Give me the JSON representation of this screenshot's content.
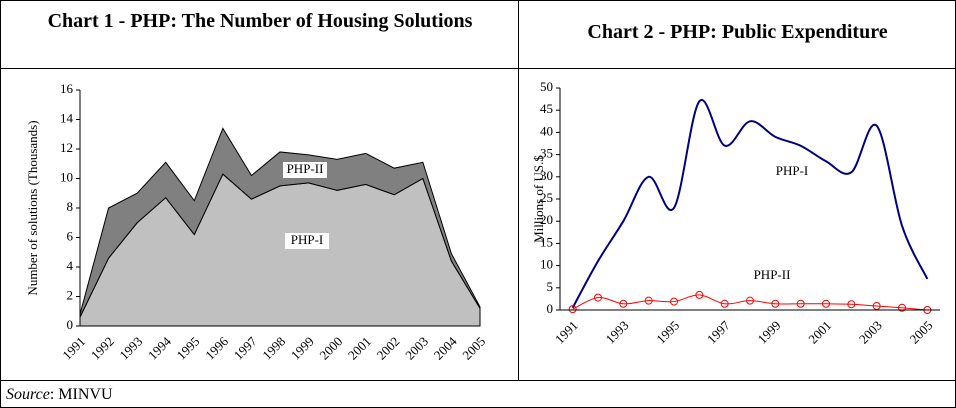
{
  "chart_data": [
    {
      "type": "stacked_area",
      "title": "Chart 1 - PHP: The Number of Housing Solutions",
      "y_label": "Number of solutions (Thousands)",
      "categories": [
        "1991",
        "1992",
        "1993",
        "1994",
        "1995",
        "1996",
        "1997",
        "1998",
        "1999",
        "2000",
        "2001",
        "2002",
        "2003",
        "2004",
        "2005"
      ],
      "series": [
        {
          "name": "PHP-I",
          "color": "#c0c0c0",
          "values": [
            0.6,
            4.6,
            7.0,
            8.7,
            6.2,
            10.3,
            8.6,
            9.5,
            9.7,
            9.2,
            9.6,
            8.9,
            10.0,
            4.4,
            1.2
          ]
        },
        {
          "name": "PHP-II",
          "color": "#808080",
          "values": [
            0.2,
            3.4,
            2.0,
            2.4,
            2.3,
            3.1,
            1.6,
            2.3,
            1.9,
            2.1,
            2.1,
            1.8,
            1.1,
            0.5,
            0.1
          ]
        }
      ],
      "ylim": [
        0,
        16
      ],
      "yticks": [
        0,
        2,
        4,
        6,
        8,
        10,
        12,
        14,
        16
      ]
    },
    {
      "type": "line",
      "title": "Chart 2 - PHP: Public Expenditure",
      "y_label": "Millions of US.$",
      "categories": [
        "1991",
        null,
        "1993",
        null,
        "1995",
        null,
        "1997",
        null,
        "1999",
        null,
        "2001",
        null,
        "2003",
        null,
        "2005"
      ],
      "series": [
        {
          "name": "PHP-I",
          "color": "#000080",
          "values": [
            0.5,
            11,
            20,
            30,
            23,
            47,
            37,
            42.5,
            39,
            37,
            33.5,
            31,
            41.5,
            19,
            7
          ]
        },
        {
          "name": "PHP-II",
          "color": "#ff0000",
          "values": [
            0.2,
            2.8,
            1.4,
            2.1,
            1.9,
            3.4,
            1.4,
            2.1,
            1.4,
            1.4,
            1.4,
            1.3,
            0.9,
            0.5,
            0.0
          ]
        }
      ],
      "ylim": [
        0,
        50
      ],
      "yticks": [
        0,
        5,
        10,
        15,
        20,
        25,
        30,
        35,
        40,
        45,
        50
      ]
    }
  ],
  "source": {
    "label": "Source",
    "text": ": MINVU"
  }
}
